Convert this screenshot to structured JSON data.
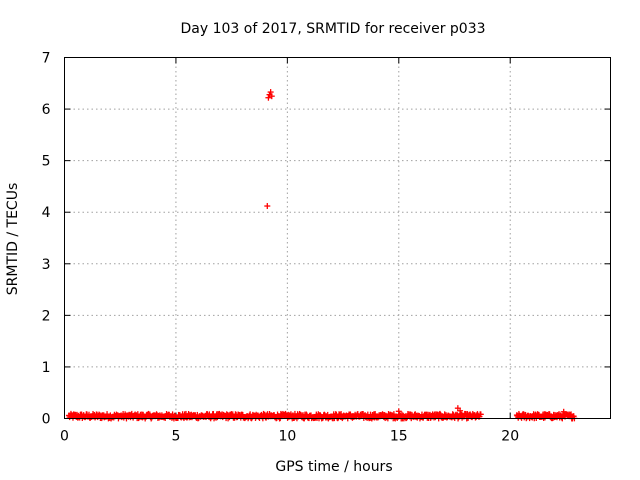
{
  "chart_data": {
    "type": "scatter",
    "title": "Day 103 of 2017, SRMTID for receiver p033",
    "xlabel": "GPS time / hours",
    "ylabel": "SRMTID / TECUs",
    "xlim": [
      0,
      24.5
    ],
    "ylim": [
      0,
      7
    ],
    "xticks": [
      0,
      5,
      10,
      15,
      20
    ],
    "yticks": [
      0,
      1,
      2,
      3,
      4,
      5,
      6,
      7
    ],
    "grid": true,
    "legend": "none",
    "marker_color": "#ff0000",
    "series": [
      {
        "x_range": [
          0.2,
          18.7
        ],
        "baseline": [
          0.0,
          0.09
        ],
        "note_step": 0.03
      }
    ],
    "outliers": [
      {
        "x": 9.1,
        "y": 4.12
      },
      {
        "x": 9.15,
        "y": 6.22
      },
      {
        "x": 9.2,
        "y": 6.28
      },
      {
        "x": 9.25,
        "y": 6.33
      },
      {
        "x": 9.3,
        "y": 6.25
      },
      {
        "x": 15.0,
        "y": 0.14
      },
      {
        "x": 17.65,
        "y": 0.2
      },
      {
        "x": 17.75,
        "y": 0.15
      },
      {
        "x": 22.4,
        "y": 0.13
      }
    ],
    "segments": [
      {
        "start": 0.2,
        "end": 18.7
      },
      {
        "start": 20.3,
        "end": 22.9
      }
    ]
  }
}
